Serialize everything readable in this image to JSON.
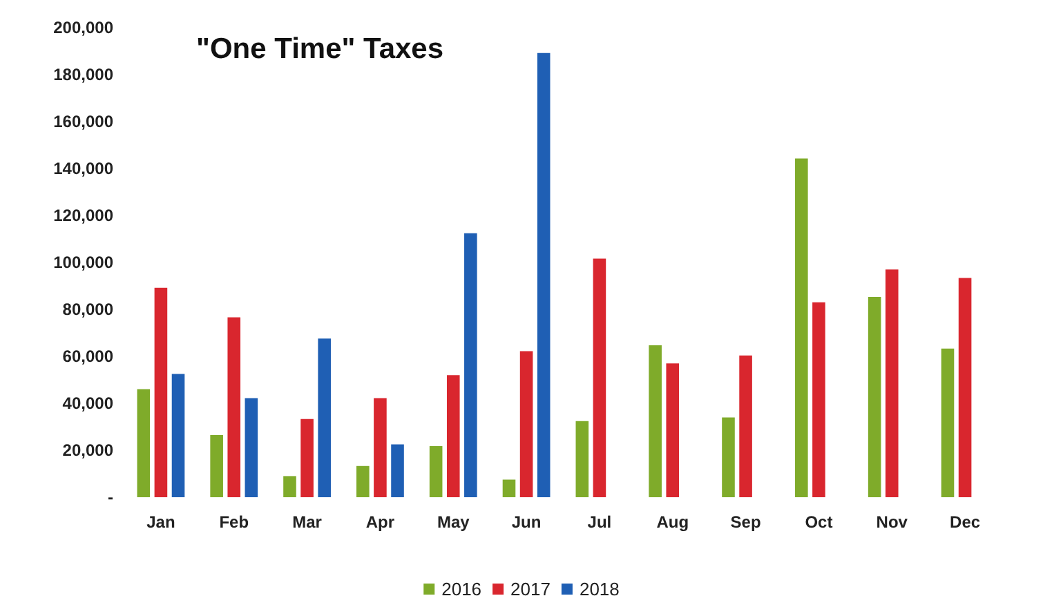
{
  "chart_data": {
    "type": "bar",
    "title": "\"One Time\" Taxes",
    "categories": [
      "Jan",
      "Feb",
      "Mar",
      "Apr",
      "May",
      "Jun",
      "Jul",
      "Aug",
      "Sep",
      "Oct",
      "Nov",
      "Dec"
    ],
    "series": [
      {
        "name": "2016",
        "color": "#7fab2a",
        "values": [
          46000,
          26500,
          9000,
          13300,
          21800,
          7500,
          32400,
          64700,
          34000,
          144300,
          85300,
          63300
        ]
      },
      {
        "name": "2017",
        "color": "#d9262e",
        "values": [
          89200,
          76600,
          33300,
          42200,
          52000,
          62200,
          101600,
          57000,
          60400,
          83000,
          97000,
          93400
        ]
      },
      {
        "name": "2018",
        "color": "#1f5fb4",
        "values": [
          52500,
          42200,
          67600,
          22500,
          112400,
          189200,
          null,
          null,
          null,
          null,
          null,
          null
        ]
      }
    ],
    "ylim": [
      0,
      200000
    ],
    "yticks": [
      {
        "value": 0,
        "label": "-"
      },
      {
        "value": 20000,
        "label": "20,000"
      },
      {
        "value": 40000,
        "label": "40,000"
      },
      {
        "value": 60000,
        "label": "60,000"
      },
      {
        "value": 80000,
        "label": "80,000"
      },
      {
        "value": 100000,
        "label": "100,000"
      },
      {
        "value": 120000,
        "label": "120,000"
      },
      {
        "value": 140000,
        "label": "140,000"
      },
      {
        "value": 160000,
        "label": "160,000"
      },
      {
        "value": 180000,
        "label": "180,000"
      },
      {
        "value": 200000,
        "label": "200,000"
      }
    ],
    "grid": false,
    "legend": "bottom"
  }
}
